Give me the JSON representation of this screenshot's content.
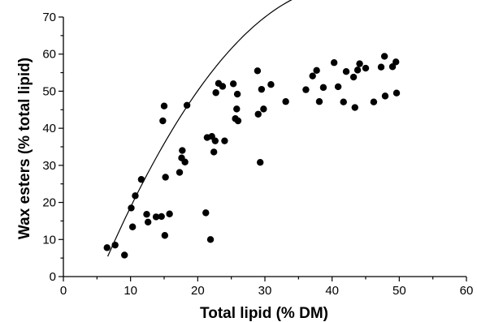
{
  "chart_data": {
    "type": "scatter",
    "title": "",
    "xlabel": "Total lipid (% DM)",
    "ylabel": "Wax esters (% total lipid)",
    "xlim": [
      0,
      60
    ],
    "ylim": [
      0,
      70
    ],
    "x_ticks": [
      0,
      10,
      20,
      30,
      40,
      50,
      60
    ],
    "y_ticks": [
      0,
      10,
      20,
      30,
      40,
      50,
      60,
      70
    ],
    "grid": false,
    "legend": "none",
    "point_color": "#000000",
    "points": [
      [
        6.5,
        7.8
      ],
      [
        7.7,
        8.5
      ],
      [
        9.1,
        5.8
      ],
      [
        10.1,
        18.5
      ],
      [
        10.3,
        13.4
      ],
      [
        10.7,
        21.8
      ],
      [
        11.6,
        26.2
      ],
      [
        12.4,
        16.8
      ],
      [
        12.6,
        14.7
      ],
      [
        13.8,
        16.1
      ],
      [
        14.6,
        16.2
      ],
      [
        14.8,
        42.0
      ],
      [
        15.0,
        46.0
      ],
      [
        15.1,
        11.1
      ],
      [
        15.2,
        26.8
      ],
      [
        15.8,
        16.9
      ],
      [
        17.3,
        28.1
      ],
      [
        17.6,
        32.0
      ],
      [
        17.7,
        34.0
      ],
      [
        18.1,
        30.9
      ],
      [
        18.4,
        46.2
      ],
      [
        21.2,
        17.2
      ],
      [
        21.4,
        37.5
      ],
      [
        21.9,
        10.0
      ],
      [
        22.1,
        37.8
      ],
      [
        22.4,
        33.6
      ],
      [
        22.6,
        36.6
      ],
      [
        22.7,
        49.6
      ],
      [
        23.1,
        52.1
      ],
      [
        23.7,
        51.3
      ],
      [
        24.0,
        36.6
      ],
      [
        25.3,
        52.0
      ],
      [
        25.6,
        42.6
      ],
      [
        25.8,
        45.2
      ],
      [
        25.9,
        49.2
      ],
      [
        26.0,
        42.0
      ],
      [
        28.9,
        55.5
      ],
      [
        29.0,
        43.8
      ],
      [
        29.3,
        30.8
      ],
      [
        29.5,
        50.5
      ],
      [
        29.8,
        45.2
      ],
      [
        30.9,
        51.8
      ],
      [
        33.1,
        47.2
      ],
      [
        36.1,
        50.4
      ],
      [
        37.1,
        54.1
      ],
      [
        37.7,
        55.6
      ],
      [
        38.1,
        47.2
      ],
      [
        38.7,
        51.0
      ],
      [
        40.3,
        57.7
      ],
      [
        40.9,
        51.2
      ],
      [
        41.7,
        47.1
      ],
      [
        42.1,
        55.3
      ],
      [
        43.2,
        53.8
      ],
      [
        43.4,
        45.6
      ],
      [
        43.8,
        55.7
      ],
      [
        44.1,
        57.4
      ],
      [
        45.0,
        56.2
      ],
      [
        46.2,
        47.1
      ],
      [
        47.3,
        56.5
      ],
      [
        47.8,
        59.4
      ],
      [
        47.9,
        48.7
      ],
      [
        49.0,
        56.6
      ],
      [
        49.5,
        57.9
      ],
      [
        49.6,
        49.5
      ]
    ],
    "fit_curve": {
      "type": "quadratic",
      "x_range": [
        6.6,
        50
      ],
      "coefficients": [
        -24.2,
        4.87,
        -0.0577
      ]
    }
  }
}
